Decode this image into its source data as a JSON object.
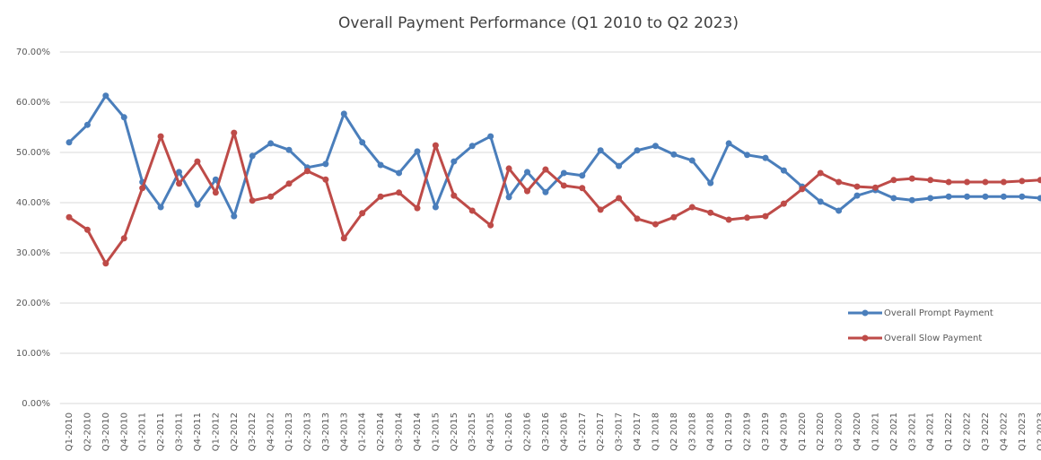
{
  "chart_data": {
    "type": "line",
    "title": "Overall Payment Performance (Q1 2010 to Q2 2023)",
    "categories": [
      "Q1-2010",
      "Q2-2010",
      "Q3-2010",
      "Q4-2010",
      "Q1-2011",
      "Q2-2011",
      "Q3-2011",
      "Q4-2011",
      "Q1-2012",
      "Q2-2012",
      "Q3-2012",
      "Q4-2012",
      "Q1-2013",
      "Q2-2013",
      "Q3-2013",
      "Q4-2013",
      "Q1-2014",
      "Q2-2014",
      "Q3-2014",
      "Q4-2014",
      "Q1-2015",
      "Q2-2015",
      "Q3-2015",
      "Q4-2015",
      "Q1-2016",
      "Q2-2016",
      "Q3-2016",
      "Q4-2016",
      "Q1-2017",
      "Q2-2017",
      "Q3-2017",
      "Q4 2017",
      "Q1 2018",
      "Q2 2018",
      "Q3 2018",
      "Q4 2018",
      "Q1 2019",
      "Q2 2019",
      "Q3 2019",
      "Q4 2019",
      "Q1 2020",
      "Q2 2020",
      "Q3 2020",
      "Q4 2020",
      "Q1 2021",
      "Q2 2021",
      "Q3 2021",
      "Q4 2021",
      "Q1 2022",
      "Q2 2022",
      "Q3 2022",
      "Q4 2022",
      "Q1 2023",
      "Q2 2023"
    ],
    "series": [
      {
        "name": "Overall Prompt Payment",
        "color": "#4a7ebb",
        "values": [
          52.0,
          55.5,
          61.3,
          57.0,
          44.1,
          39.1,
          46.1,
          39.6,
          44.6,
          37.3,
          49.3,
          51.8,
          50.5,
          47.0,
          47.7,
          57.7,
          52.0,
          47.5,
          45.9,
          50.2,
          39.1,
          48.2,
          51.3,
          53.2,
          41.1,
          46.1,
          42.1,
          45.9,
          45.4,
          50.4,
          47.3,
          50.4,
          51.3,
          49.6,
          48.4,
          43.9,
          51.8,
          49.5,
          48.9,
          46.4,
          43.2,
          40.2,
          38.4,
          41.4,
          42.5,
          40.9,
          40.5,
          40.9,
          41.2,
          41.2,
          41.2,
          41.2,
          41.2,
          40.9
        ]
      },
      {
        "name": "Overall Slow Payment",
        "color": "#be4b48",
        "values": [
          37.1,
          34.6,
          27.9,
          32.9,
          42.9,
          53.2,
          43.8,
          48.2,
          42.0,
          53.9,
          40.4,
          41.2,
          43.8,
          46.3,
          44.6,
          32.9,
          37.9,
          41.2,
          42.0,
          38.9,
          51.4,
          41.4,
          38.4,
          35.5,
          46.8,
          42.3,
          46.6,
          43.4,
          42.9,
          38.6,
          40.9,
          36.8,
          35.7,
          37.1,
          39.1,
          38.0,
          36.6,
          37.0,
          37.3,
          39.8,
          42.7,
          45.9,
          44.1,
          43.2,
          43.0,
          44.5,
          44.8,
          44.5,
          44.1,
          44.1,
          44.1,
          44.1,
          44.3,
          44.5
        ]
      }
    ],
    "ylim": [
      0,
      70
    ],
    "yticks": [
      {
        "value": 0,
        "label": "0.00%"
      },
      {
        "value": 10,
        "label": "10.00%"
      },
      {
        "value": 20,
        "label": "20.00%"
      },
      {
        "value": 30,
        "label": "30.00%"
      },
      {
        "value": 40,
        "label": "40.00%"
      },
      {
        "value": 50,
        "label": "50.00%"
      },
      {
        "value": 60,
        "label": "60.00%"
      },
      {
        "value": 70,
        "label": "70.00%"
      }
    ],
    "grid": true,
    "legend": "right"
  }
}
